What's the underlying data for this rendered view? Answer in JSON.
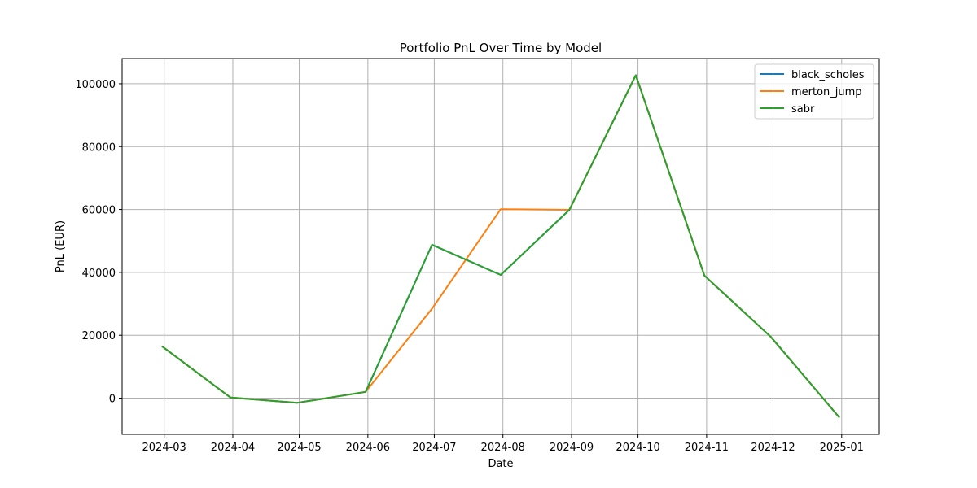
{
  "chart_data": {
    "type": "line",
    "title": "Portfolio PnL Over Time by Model",
    "xlabel": "Date",
    "ylabel": "PnL (EUR)",
    "x": [
      "2024-02-29",
      "2024-03-31",
      "2024-04-30",
      "2024-05-31",
      "2024-06-30",
      "2024-07-31",
      "2024-08-31",
      "2024-09-30",
      "2024-10-31",
      "2024-11-30",
      "2024-12-31"
    ],
    "x_tick_dates": [
      "2024-03-01",
      "2024-04-01",
      "2024-05-01",
      "2024-06-01",
      "2024-07-01",
      "2024-08-01",
      "2024-09-01",
      "2024-10-01",
      "2024-11-01",
      "2024-12-01",
      "2025-01-01"
    ],
    "x_tick_labels": [
      "2024-03",
      "2024-04",
      "2024-05",
      "2024-06",
      "2024-07",
      "2024-08",
      "2024-09",
      "2024-10",
      "2024-11",
      "2024-12",
      "2025-01"
    ],
    "y_ticks": [
      0,
      20000,
      40000,
      60000,
      80000,
      100000
    ],
    "y_tick_labels": [
      "0",
      "20000",
      "40000",
      "60000",
      "80000",
      "100000"
    ],
    "ylim": [
      -11500,
      108000
    ],
    "xlim": [
      "2024-02-11",
      "2025-01-18"
    ],
    "grid": true,
    "legend_position": "top-right",
    "series": [
      {
        "name": "black_scholes",
        "color": "#1f77b4",
        "values": [
          16500,
          200,
          -1500,
          2000,
          48800,
          39200,
          59900,
          102700,
          39000,
          19500,
          -6200
        ]
      },
      {
        "name": "merton_jump",
        "color": "#ff7f0e",
        "values": [
          16500,
          200,
          -1500,
          2000,
          28500,
          60100,
          59900,
          102700,
          39000,
          19500,
          -6200
        ]
      },
      {
        "name": "sabr",
        "color": "#2ca02c",
        "values": [
          16500,
          200,
          -1500,
          2000,
          48800,
          39200,
          59900,
          102700,
          39000,
          19500,
          -6200
        ]
      }
    ]
  }
}
